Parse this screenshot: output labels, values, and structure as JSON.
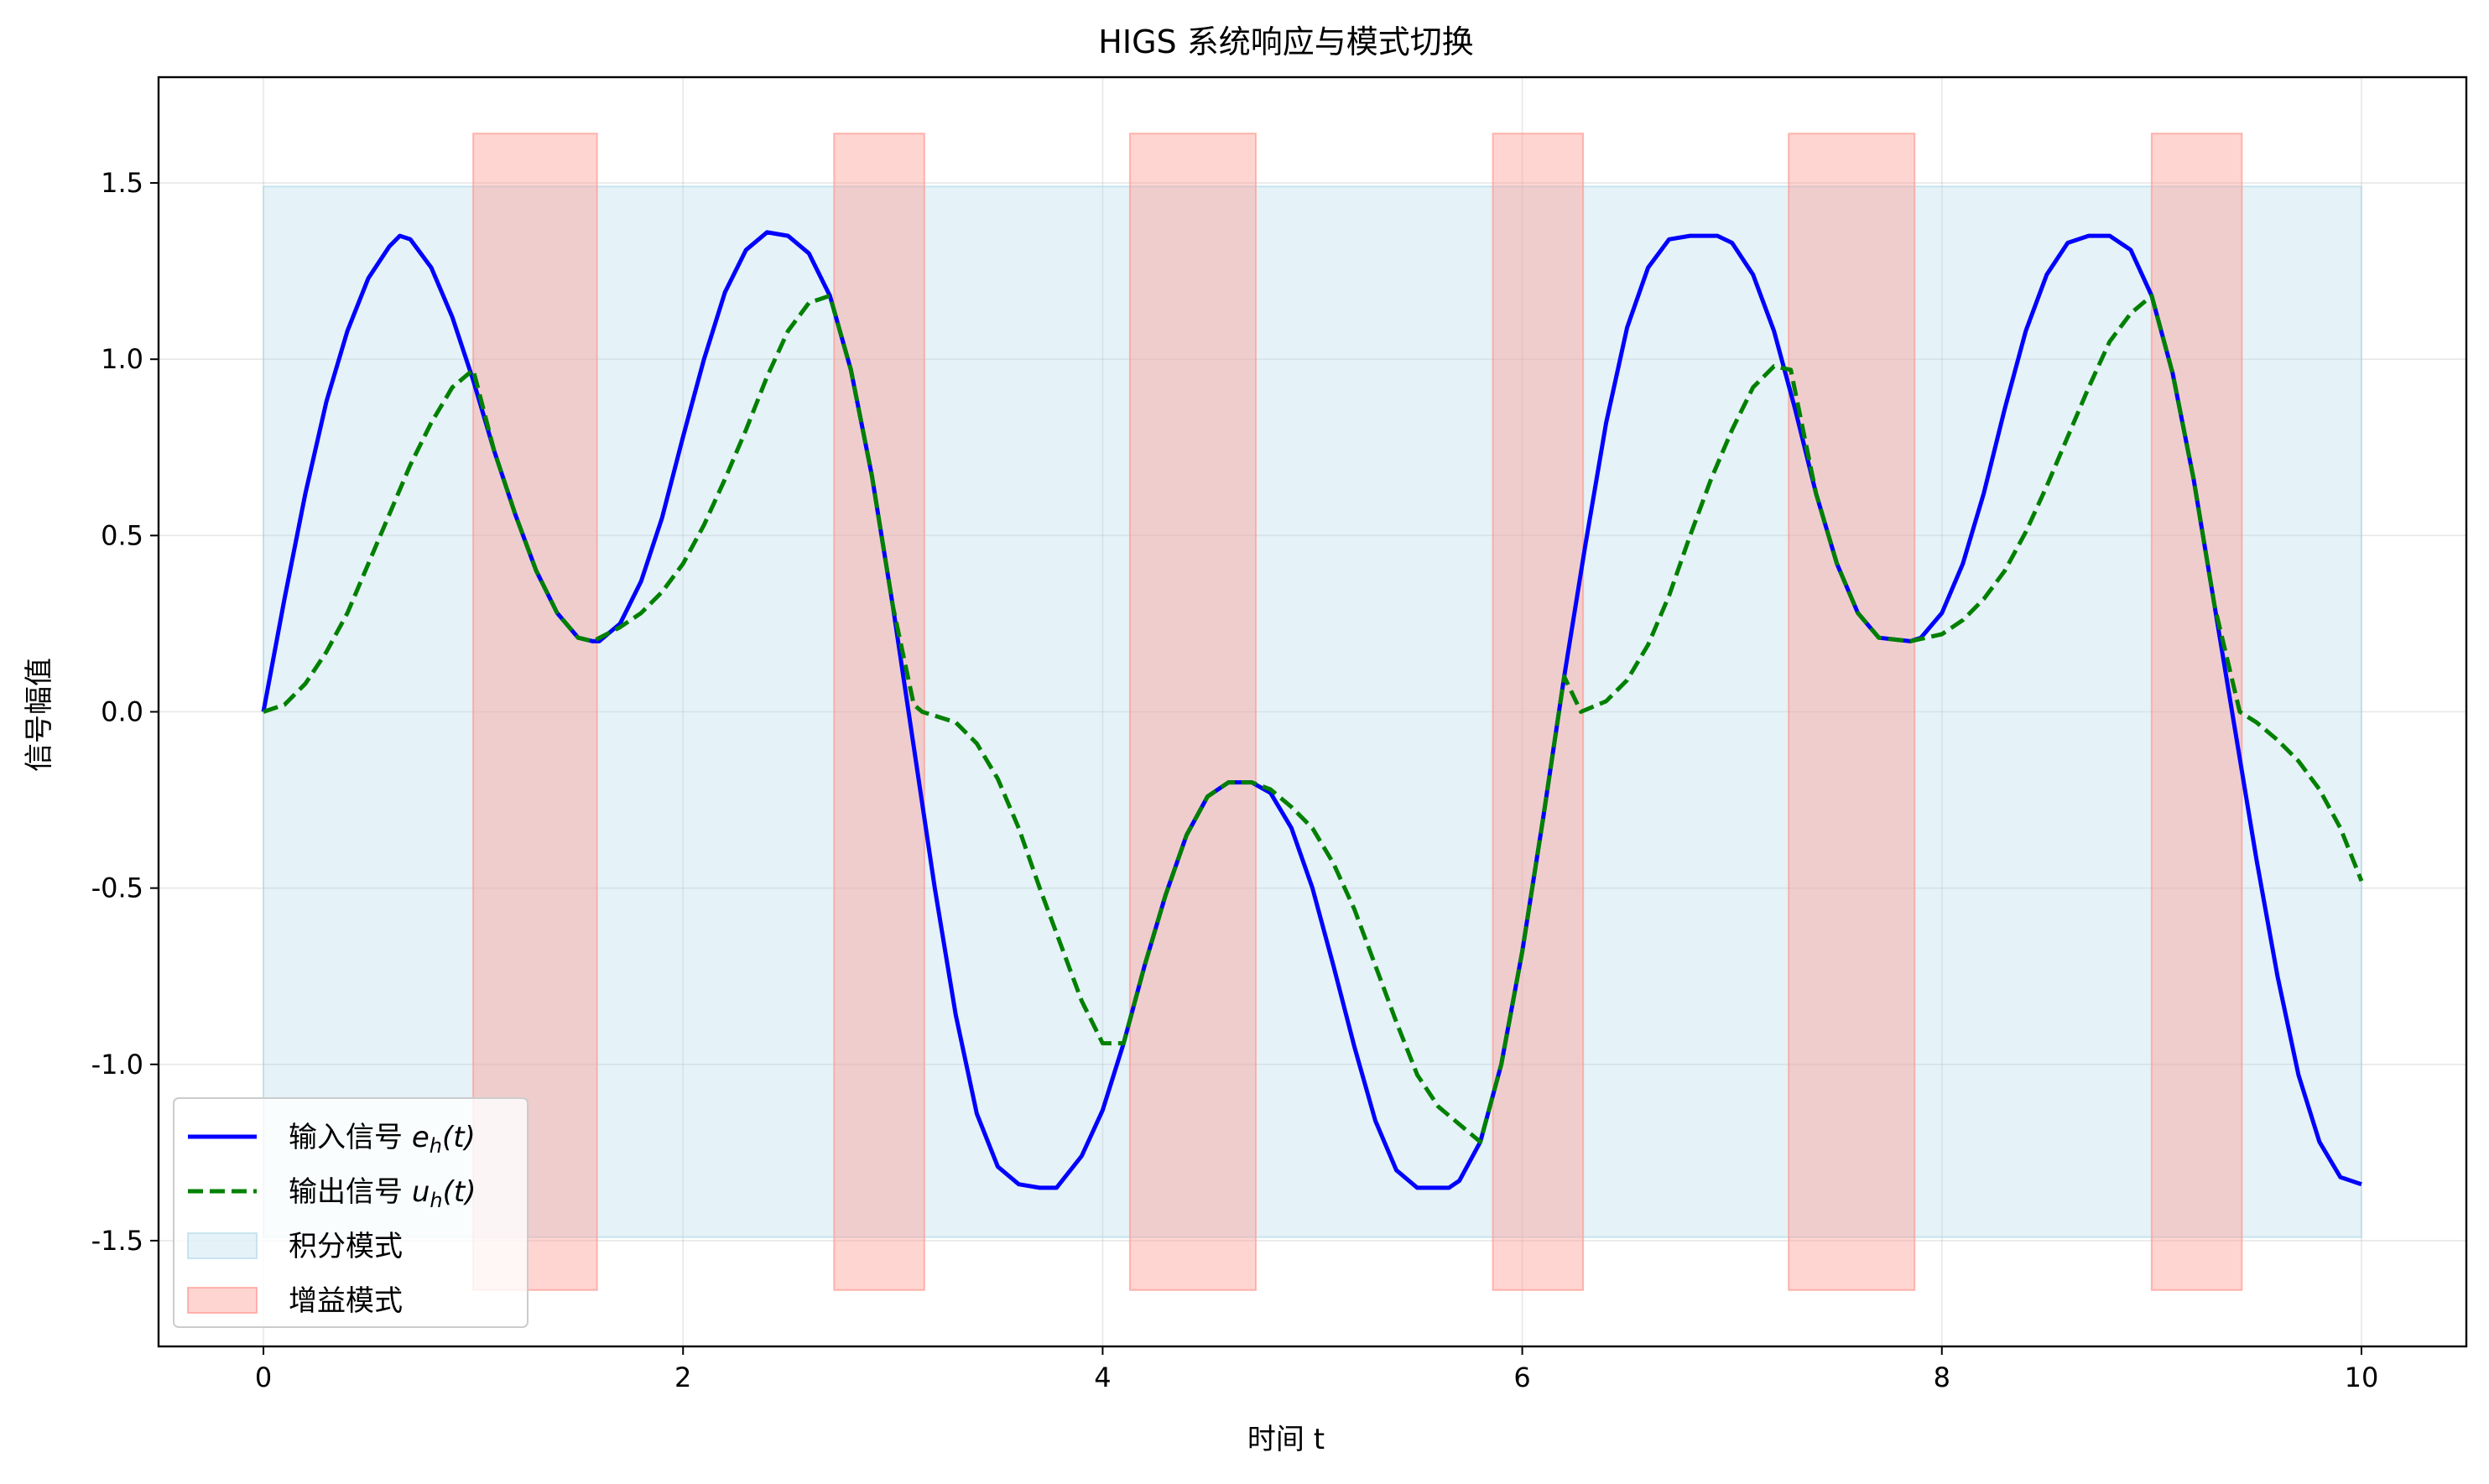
{
  "chart_data": {
    "type": "line",
    "title": "HIGS 系统响应与模式切换",
    "xlabel": "时间 t",
    "ylabel": "信号幅值",
    "xlim": [
      -0.5,
      10.5
    ],
    "ylim": [
      -1.8,
      1.8
    ],
    "x_ticks": [
      0,
      2,
      4,
      6,
      8,
      10
    ],
    "x_tick_labels": [
      "0",
      "2",
      "4",
      "6",
      "8",
      "10"
    ],
    "y_ticks": [
      1.5,
      1.0,
      0.5,
      0.0,
      -0.5,
      -1.0,
      -1.5
    ],
    "y_tick_labels": [
      "1.5",
      "1.0",
      "0.5",
      "0.0",
      "-0.5",
      "-1.0",
      "-1.5"
    ],
    "grid": true,
    "legend_position": "lower-left",
    "series": [
      {
        "name": "输入信号 eh(t)",
        "name_main": "输入信号 ",
        "name_math": "e",
        "name_sub": "h",
        "name_tail": "(t)",
        "color": "#0000ff",
        "style": "solid",
        "x": [
          0,
          0.1,
          0.2,
          0.3,
          0.4,
          0.5,
          0.6,
          0.65,
          0.7,
          0.8,
          0.9,
          1.0,
          1.1,
          1.2,
          1.3,
          1.4,
          1.5,
          1.57,
          1.6,
          1.7,
          1.8,
          1.9,
          2.0,
          2.1,
          2.2,
          2.3,
          2.4,
          2.5,
          2.6,
          2.7,
          2.8,
          2.9,
          3.0,
          3.1,
          3.2,
          3.3,
          3.4,
          3.5,
          3.6,
          3.7,
          3.78,
          3.9,
          4.0,
          4.1,
          4.2,
          4.3,
          4.4,
          4.5,
          4.6,
          4.71,
          4.8,
          4.9,
          5.0,
          5.1,
          5.2,
          5.3,
          5.4,
          5.5,
          5.65,
          5.7,
          5.8,
          5.9,
          6.0,
          6.1,
          6.2,
          6.3,
          6.4,
          6.5,
          6.6,
          6.7,
          6.8,
          6.93,
          7.0,
          7.1,
          7.2,
          7.3,
          7.4,
          7.5,
          7.6,
          7.7,
          7.85,
          7.9,
          8.0,
          8.1,
          8.2,
          8.3,
          8.4,
          8.5,
          8.6,
          8.7,
          8.8,
          8.9,
          9.0,
          9.1,
          9.2,
          9.3,
          9.4,
          9.5,
          9.6,
          9.7,
          9.8,
          9.9,
          10.0
        ],
        "y": [
          0.0,
          0.32,
          0.62,
          0.88,
          1.08,
          1.23,
          1.32,
          1.35,
          1.34,
          1.26,
          1.12,
          0.94,
          0.74,
          0.56,
          0.4,
          0.28,
          0.21,
          0.2,
          0.2,
          0.25,
          0.37,
          0.55,
          0.78,
          1.0,
          1.19,
          1.31,
          1.36,
          1.35,
          1.3,
          1.18,
          0.97,
          0.67,
          0.3,
          -0.1,
          -0.5,
          -0.86,
          -1.14,
          -1.29,
          -1.34,
          -1.35,
          -1.35,
          -1.26,
          -1.13,
          -0.94,
          -0.72,
          -0.52,
          -0.35,
          -0.24,
          -0.2,
          -0.2,
          -0.23,
          -0.33,
          -0.5,
          -0.72,
          -0.95,
          -1.16,
          -1.3,
          -1.35,
          -1.35,
          -1.33,
          -1.22,
          -1.0,
          -0.68,
          -0.3,
          0.1,
          0.47,
          0.82,
          1.09,
          1.26,
          1.34,
          1.35,
          1.35,
          1.33,
          1.24,
          1.08,
          0.86,
          0.62,
          0.42,
          0.28,
          0.21,
          0.2,
          0.21,
          0.28,
          0.42,
          0.62,
          0.86,
          1.08,
          1.24,
          1.33,
          1.35,
          1.35,
          1.31,
          1.18,
          0.96,
          0.66,
          0.3,
          -0.06,
          -0.42,
          -0.75,
          -1.03,
          -1.22,
          -1.32,
          -1.34
        ]
      },
      {
        "name": "输出信号 uh(t)",
        "name_main": "输出信号 ",
        "name_math": "u",
        "name_sub": "h",
        "name_tail": "(t)",
        "color": "#008000",
        "style": "dashed",
        "x": [
          0,
          0.1,
          0.2,
          0.3,
          0.4,
          0.5,
          0.6,
          0.7,
          0.8,
          0.9,
          1.0,
          1.1,
          1.2,
          1.3,
          1.4,
          1.5,
          1.57,
          1.7,
          1.8,
          1.9,
          2.0,
          2.1,
          2.2,
          2.3,
          2.4,
          2.5,
          2.6,
          2.7,
          2.8,
          2.9,
          3.0,
          3.1,
          3.14,
          3.3,
          3.4,
          3.5,
          3.6,
          3.7,
          3.8,
          3.9,
          4.0,
          4.1,
          4.2,
          4.3,
          4.4,
          4.5,
          4.6,
          4.71,
          4.8,
          4.9,
          5.0,
          5.1,
          5.2,
          5.3,
          5.4,
          5.5,
          5.6,
          5.7,
          5.8,
          5.9,
          6.0,
          6.1,
          6.2,
          6.28,
          6.4,
          6.5,
          6.6,
          6.7,
          6.8,
          6.9,
          7.0,
          7.1,
          7.2,
          7.28,
          7.4,
          7.5,
          7.6,
          7.7,
          7.85,
          8.0,
          8.1,
          8.2,
          8.3,
          8.4,
          8.5,
          8.6,
          8.7,
          8.8,
          8.9,
          9.0,
          9.1,
          9.2,
          9.3,
          9.42,
          9.5,
          9.6,
          9.7,
          9.8,
          9.9,
          10.0
        ],
        "y": [
          0.0,
          0.02,
          0.08,
          0.17,
          0.28,
          0.42,
          0.56,
          0.7,
          0.82,
          0.92,
          0.97,
          0.74,
          0.56,
          0.4,
          0.28,
          0.21,
          0.2,
          0.24,
          0.28,
          0.34,
          0.42,
          0.53,
          0.66,
          0.8,
          0.95,
          1.08,
          1.16,
          1.18,
          0.97,
          0.67,
          0.3,
          0.02,
          0.0,
          -0.03,
          -0.09,
          -0.19,
          -0.33,
          -0.5,
          -0.66,
          -0.82,
          -0.94,
          -0.94,
          -0.72,
          -0.52,
          -0.35,
          -0.24,
          -0.2,
          -0.2,
          -0.22,
          -0.27,
          -0.33,
          -0.43,
          -0.56,
          -0.72,
          -0.88,
          -1.03,
          -1.12,
          -1.17,
          -1.22,
          -1.0,
          -0.68,
          -0.3,
          0.1,
          0.0,
          0.03,
          0.09,
          0.19,
          0.33,
          0.5,
          0.66,
          0.8,
          0.92,
          0.98,
          0.97,
          0.62,
          0.42,
          0.28,
          0.21,
          0.2,
          0.22,
          0.26,
          0.32,
          0.4,
          0.51,
          0.64,
          0.78,
          0.92,
          1.05,
          1.13,
          1.18,
          0.96,
          0.66,
          0.3,
          0.0,
          -0.03,
          -0.08,
          -0.14,
          -0.22,
          -0.33,
          -0.48
        ]
      }
    ],
    "regions": [
      {
        "name": "积分模式",
        "color": "#add8e6",
        "opacity": 0.32,
        "spans": [
          [
            0,
            10
          ]
        ],
        "y_range": [
          -1.49,
          1.49
        ]
      },
      {
        "name": "增益模式",
        "color": "#ff9c94",
        "opacity": 0.42,
        "spans": [
          [
            1.0,
            1.59
          ],
          [
            2.72,
            3.15
          ],
          [
            4.13,
            4.73
          ],
          [
            5.86,
            6.29
          ],
          [
            7.27,
            7.87
          ],
          [
            9.0,
            9.43
          ]
        ],
        "y_range": [
          -1.64,
          1.64
        ]
      }
    ]
  }
}
